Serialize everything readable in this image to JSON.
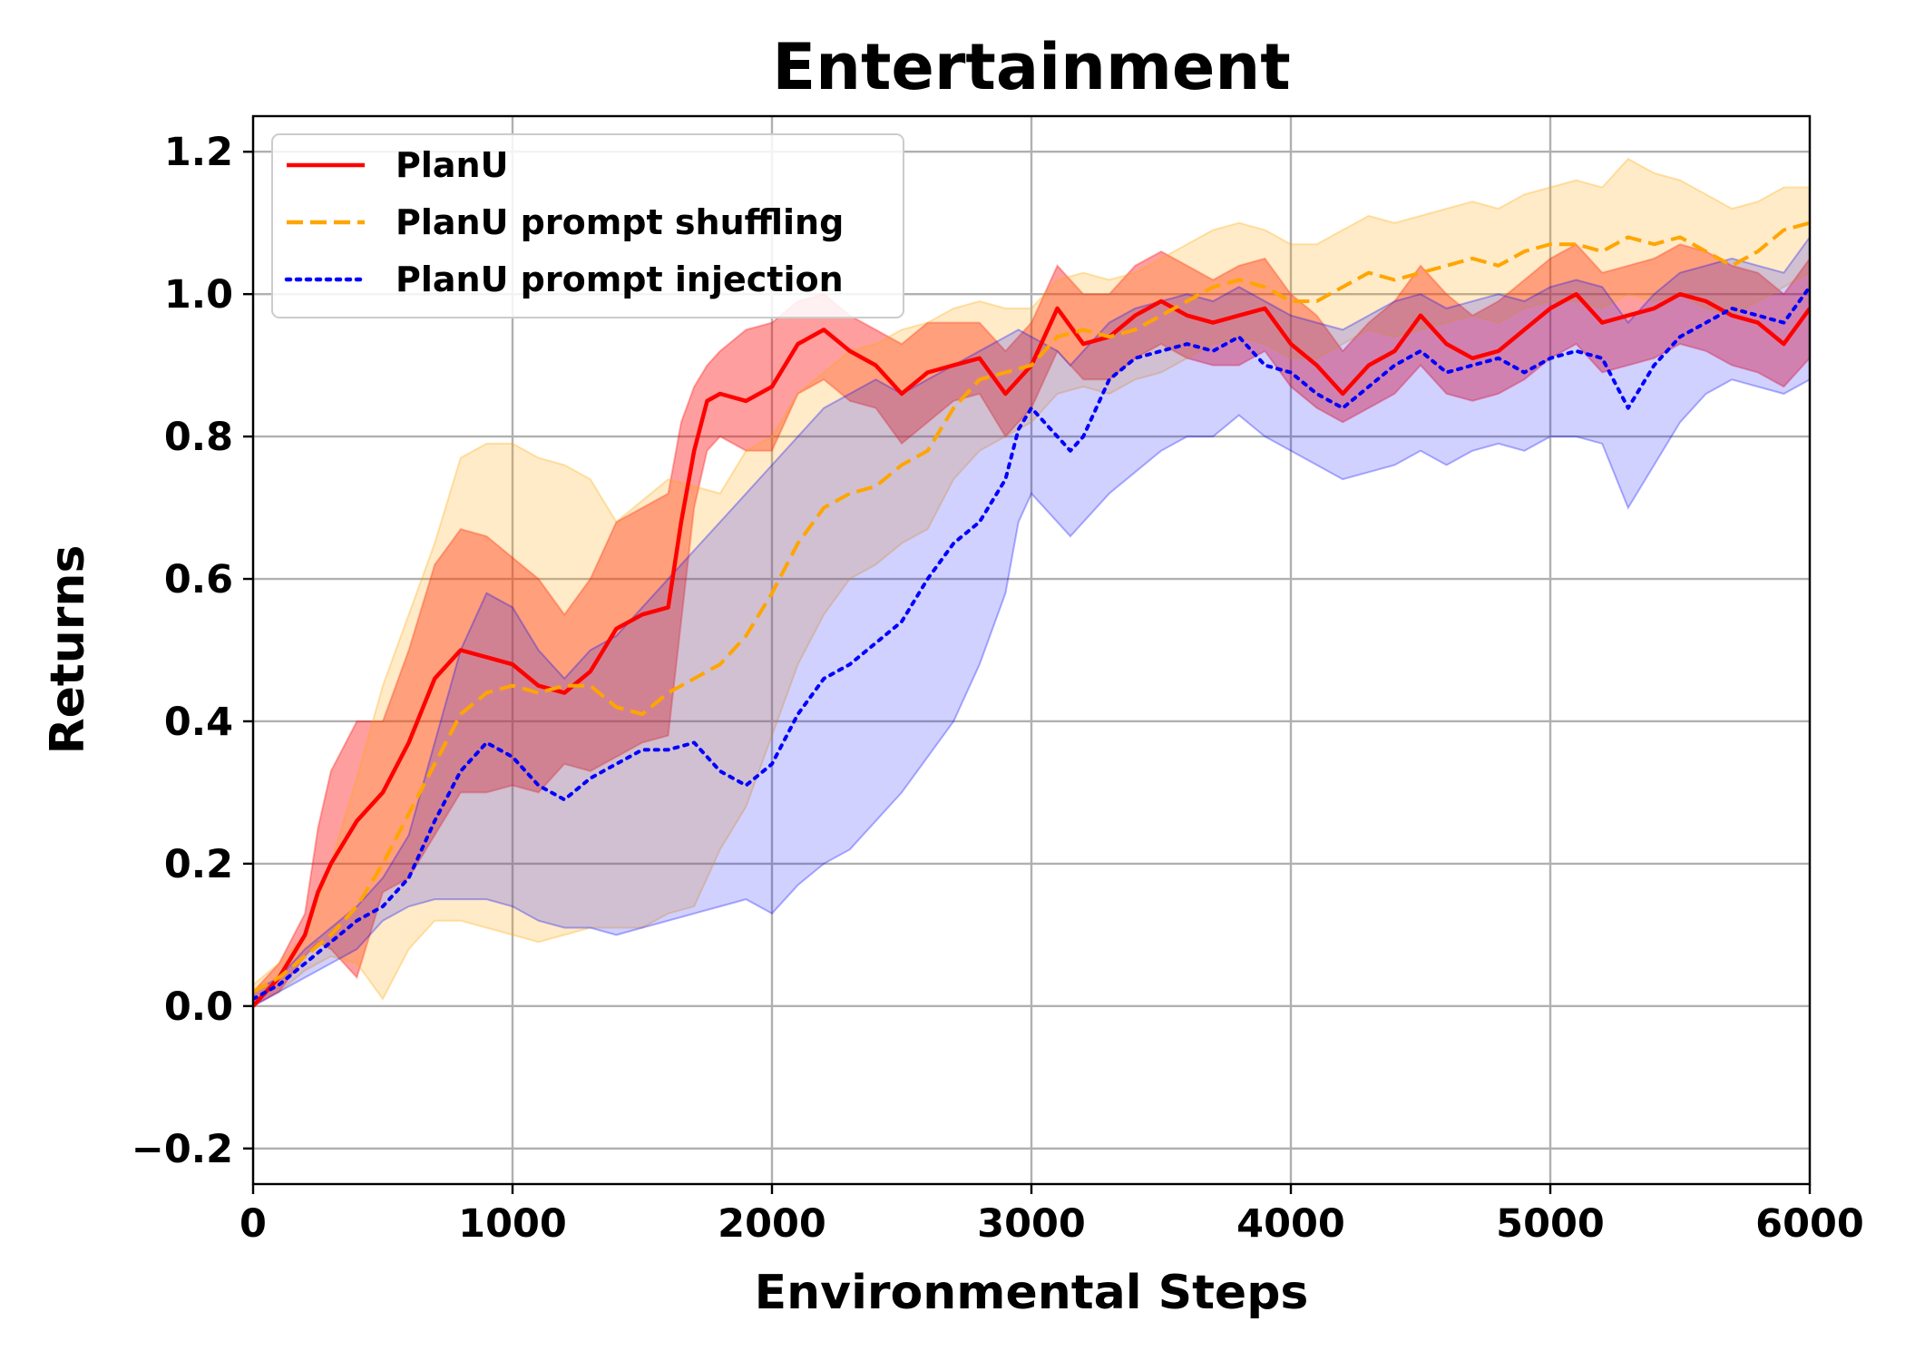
{
  "chart_data": {
    "type": "line",
    "title": "Entertainment",
    "xlabel": "Environmental Steps",
    "ylabel": "Returns",
    "xlim": [
      0,
      6000
    ],
    "ylim": [
      -0.25,
      1.25
    ],
    "xticks": [
      0,
      1000,
      2000,
      3000,
      4000,
      5000,
      6000
    ],
    "xtick_labels": [
      "0",
      "1000",
      "2000",
      "3000",
      "4000",
      "5000",
      "6000"
    ],
    "yticks": [
      -0.2,
      0.0,
      0.2,
      0.4,
      0.6,
      0.8,
      1.0,
      1.2
    ],
    "ytick_labels": [
      "−0.2",
      "0.0",
      "0.2",
      "0.4",
      "0.6",
      "0.8",
      "1.0",
      "1.2"
    ],
    "grid": true,
    "legend_position": "top-left",
    "series": [
      {
        "name": "PlanU",
        "color": "#ff0000",
        "band_color": "#ff0000",
        "band_opacity": 0.38,
        "line_style": "solid",
        "x": [
          0,
          100,
          200,
          250,
          300,
          400,
          500,
          600,
          700,
          800,
          900,
          1000,
          1100,
          1200,
          1300,
          1400,
          1500,
          1600,
          1650,
          1700,
          1750,
          1800,
          1900,
          2000,
          2100,
          2200,
          2300,
          2400,
          2500,
          2600,
          2700,
          2800,
          2900,
          3000,
          3100,
          3200,
          3300,
          3400,
          3500,
          3600,
          3700,
          3800,
          3900,
          4000,
          4100,
          4200,
          4300,
          4400,
          4500,
          4600,
          4700,
          4800,
          4900,
          5000,
          5100,
          5200,
          5300,
          5400,
          5500,
          5600,
          5700,
          5800,
          5900,
          6000
        ],
        "y": [
          0.0,
          0.04,
          0.1,
          0.16,
          0.2,
          0.26,
          0.3,
          0.37,
          0.46,
          0.5,
          0.49,
          0.48,
          0.45,
          0.44,
          0.47,
          0.53,
          0.55,
          0.56,
          0.68,
          0.78,
          0.85,
          0.86,
          0.85,
          0.87,
          0.93,
          0.95,
          0.92,
          0.9,
          0.86,
          0.89,
          0.9,
          0.91,
          0.86,
          0.9,
          0.98,
          0.93,
          0.94,
          0.97,
          0.99,
          0.97,
          0.96,
          0.97,
          0.98,
          0.93,
          0.9,
          0.86,
          0.9,
          0.92,
          0.97,
          0.93,
          0.91,
          0.92,
          0.95,
          0.98,
          1.0,
          0.96,
          0.97,
          0.98,
          1.0,
          0.99,
          0.97,
          0.96,
          0.93,
          0.98
        ],
        "lower": [
          0.0,
          0.02,
          0.07,
          0.09,
          0.08,
          0.04,
          0.16,
          0.18,
          0.24,
          0.3,
          0.3,
          0.31,
          0.3,
          0.34,
          0.33,
          0.35,
          0.37,
          0.38,
          0.54,
          0.7,
          0.78,
          0.8,
          0.78,
          0.78,
          0.86,
          0.88,
          0.85,
          0.84,
          0.79,
          0.82,
          0.85,
          0.86,
          0.8,
          0.84,
          0.92,
          0.88,
          0.88,
          0.91,
          0.93,
          0.91,
          0.9,
          0.9,
          0.92,
          0.87,
          0.84,
          0.82,
          0.84,
          0.86,
          0.9,
          0.86,
          0.85,
          0.86,
          0.88,
          0.91,
          0.93,
          0.89,
          0.9,
          0.91,
          0.93,
          0.92,
          0.9,
          0.89,
          0.87,
          0.91
        ],
        "upper": [
          0.02,
          0.06,
          0.13,
          0.25,
          0.33,
          0.4,
          0.4,
          0.5,
          0.62,
          0.67,
          0.66,
          0.63,
          0.6,
          0.55,
          0.6,
          0.68,
          0.7,
          0.72,
          0.82,
          0.87,
          0.9,
          0.92,
          0.95,
          0.96,
          0.99,
          1.0,
          0.97,
          0.95,
          0.93,
          0.96,
          0.96,
          0.96,
          0.92,
          0.96,
          1.04,
          1.0,
          1.0,
          1.04,
          1.06,
          1.04,
          1.02,
          1.04,
          1.05,
          1.0,
          0.97,
          0.92,
          0.96,
          0.99,
          1.04,
          1.0,
          0.97,
          0.99,
          1.02,
          1.05,
          1.07,
          1.03,
          1.04,
          1.05,
          1.07,
          1.06,
          1.04,
          1.03,
          1.0,
          1.05
        ]
      },
      {
        "name": "PlanU prompt shuffling",
        "color": "#ffa500",
        "band_color": "#ffa500",
        "band_opacity": 0.22,
        "line_style": "dashed",
        "x": [
          0,
          100,
          200,
          300,
          400,
          500,
          600,
          700,
          800,
          900,
          1000,
          1100,
          1200,
          1300,
          1400,
          1500,
          1600,
          1700,
          1800,
          1900,
          2000,
          2100,
          2200,
          2300,
          2400,
          2500,
          2600,
          2700,
          2800,
          2900,
          3000,
          3100,
          3200,
          3300,
          3400,
          3500,
          3600,
          3700,
          3800,
          3900,
          4000,
          4100,
          4200,
          4300,
          4400,
          4500,
          4600,
          4700,
          4800,
          4900,
          5000,
          5100,
          5200,
          5300,
          5400,
          5500,
          5600,
          5700,
          5800,
          5900,
          6000
        ],
        "y": [
          0.02,
          0.04,
          0.07,
          0.1,
          0.14,
          0.2,
          0.27,
          0.34,
          0.41,
          0.44,
          0.45,
          0.44,
          0.45,
          0.45,
          0.42,
          0.41,
          0.44,
          0.46,
          0.48,
          0.52,
          0.58,
          0.65,
          0.7,
          0.72,
          0.73,
          0.76,
          0.78,
          0.84,
          0.88,
          0.89,
          0.9,
          0.94,
          0.95,
          0.94,
          0.95,
          0.97,
          0.99,
          1.01,
          1.02,
          1.01,
          0.99,
          0.99,
          1.01,
          1.03,
          1.02,
          1.03,
          1.04,
          1.05,
          1.04,
          1.06,
          1.07,
          1.07,
          1.06,
          1.08,
          1.07,
          1.08,
          1.06,
          1.04,
          1.06,
          1.09,
          1.1
        ],
        "lower": [
          0.01,
          0.02,
          0.05,
          0.07,
          0.06,
          0.01,
          0.08,
          0.12,
          0.12,
          0.11,
          0.1,
          0.09,
          0.1,
          0.11,
          0.11,
          0.11,
          0.13,
          0.14,
          0.22,
          0.28,
          0.38,
          0.48,
          0.55,
          0.6,
          0.62,
          0.65,
          0.67,
          0.74,
          0.78,
          0.8,
          0.82,
          0.86,
          0.87,
          0.86,
          0.88,
          0.89,
          0.91,
          0.93,
          0.94,
          0.93,
          0.91,
          0.91,
          0.93,
          0.95,
          0.94,
          0.95,
          0.96,
          0.97,
          0.96,
          0.98,
          0.99,
          0.99,
          0.98,
          1.0,
          0.99,
          1.0,
          0.98,
          0.97,
          0.99,
          1.01,
          1.03
        ],
        "upper": [
          0.03,
          0.06,
          0.1,
          0.2,
          0.32,
          0.45,
          0.55,
          0.65,
          0.77,
          0.79,
          0.79,
          0.77,
          0.76,
          0.74,
          0.68,
          0.71,
          0.74,
          0.73,
          0.72,
          0.78,
          0.8,
          0.86,
          0.89,
          0.92,
          0.93,
          0.95,
          0.96,
          0.98,
          0.99,
          0.98,
          0.98,
          1.02,
          1.03,
          1.02,
          1.03,
          1.05,
          1.07,
          1.09,
          1.1,
          1.09,
          1.07,
          1.07,
          1.09,
          1.11,
          1.1,
          1.11,
          1.12,
          1.13,
          1.12,
          1.14,
          1.15,
          1.16,
          1.15,
          1.19,
          1.17,
          1.16,
          1.14,
          1.12,
          1.13,
          1.15,
          1.15
        ]
      },
      {
        "name": "PlanU prompt injection",
        "color": "#0000ff",
        "band_color": "#0000ff",
        "band_opacity": 0.18,
        "line_style": "dotted",
        "x": [
          0,
          100,
          200,
          300,
          400,
          500,
          600,
          700,
          800,
          900,
          1000,
          1100,
          1200,
          1300,
          1400,
          1500,
          1600,
          1700,
          1800,
          1900,
          2000,
          2100,
          2200,
          2300,
          2400,
          2500,
          2600,
          2700,
          2800,
          2900,
          2950,
          3000,
          3100,
          3150,
          3200,
          3300,
          3400,
          3500,
          3600,
          3700,
          3800,
          3900,
          4000,
          4100,
          4200,
          4300,
          4400,
          4500,
          4600,
          4700,
          4800,
          4900,
          5000,
          5100,
          5200,
          5300,
          5400,
          5500,
          5600,
          5700,
          5800,
          5900,
          6000
        ],
        "y": [
          0.01,
          0.03,
          0.06,
          0.09,
          0.12,
          0.14,
          0.18,
          0.26,
          0.33,
          0.37,
          0.35,
          0.31,
          0.29,
          0.32,
          0.34,
          0.36,
          0.36,
          0.37,
          0.33,
          0.31,
          0.34,
          0.41,
          0.46,
          0.48,
          0.51,
          0.54,
          0.6,
          0.65,
          0.68,
          0.74,
          0.81,
          0.84,
          0.8,
          0.78,
          0.8,
          0.88,
          0.91,
          0.92,
          0.93,
          0.92,
          0.94,
          0.9,
          0.89,
          0.86,
          0.84,
          0.87,
          0.9,
          0.92,
          0.89,
          0.9,
          0.91,
          0.89,
          0.91,
          0.92,
          0.91,
          0.84,
          0.9,
          0.94,
          0.96,
          0.98,
          0.97,
          0.96,
          1.01
        ],
        "lower": [
          0.0,
          0.02,
          0.04,
          0.06,
          0.08,
          0.12,
          0.14,
          0.15,
          0.15,
          0.15,
          0.14,
          0.12,
          0.11,
          0.11,
          0.1,
          0.11,
          0.12,
          0.13,
          0.14,
          0.15,
          0.13,
          0.17,
          0.2,
          0.22,
          0.26,
          0.3,
          0.35,
          0.4,
          0.48,
          0.58,
          0.68,
          0.72,
          0.68,
          0.66,
          0.68,
          0.72,
          0.75,
          0.78,
          0.8,
          0.8,
          0.83,
          0.8,
          0.78,
          0.76,
          0.74,
          0.75,
          0.76,
          0.78,
          0.76,
          0.78,
          0.79,
          0.78,
          0.8,
          0.8,
          0.79,
          0.7,
          0.76,
          0.82,
          0.86,
          0.88,
          0.87,
          0.86,
          0.88
        ],
        "upper": [
          0.02,
          0.04,
          0.08,
          0.11,
          0.14,
          0.18,
          0.24,
          0.37,
          0.5,
          0.58,
          0.56,
          0.5,
          0.46,
          0.5,
          0.52,
          0.56,
          0.6,
          0.64,
          0.68,
          0.72,
          0.76,
          0.8,
          0.84,
          0.86,
          0.88,
          0.86,
          0.88,
          0.9,
          0.92,
          0.94,
          0.95,
          0.94,
          0.92,
          0.9,
          0.92,
          0.96,
          0.98,
          0.99,
          1.0,
          0.99,
          1.01,
          0.99,
          0.97,
          0.96,
          0.95,
          0.97,
          0.99,
          1.0,
          0.98,
          0.99,
          1.0,
          0.99,
          1.01,
          1.02,
          1.01,
          0.96,
          1.0,
          1.03,
          1.04,
          1.05,
          1.04,
          1.03,
          1.08
        ]
      }
    ]
  }
}
